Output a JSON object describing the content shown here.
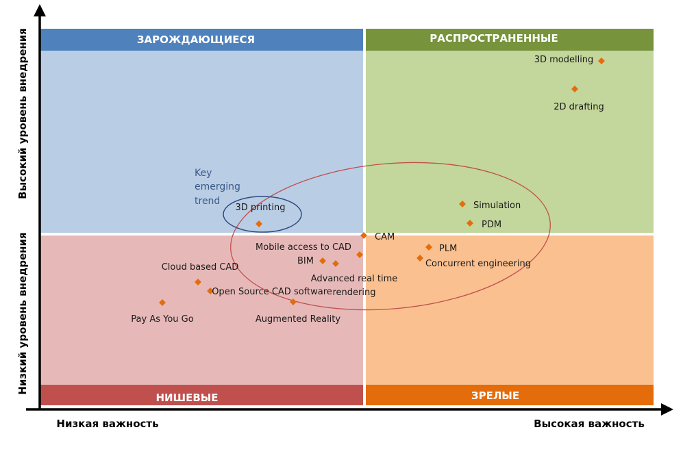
{
  "quadrants": {
    "top_left": {
      "title": "ЗАРОЖДАЮЩИЕСЯ",
      "header_color": "#4f81bd",
      "fill_color": "#b9cde5"
    },
    "top_right": {
      "title": "РАСПРОСТРАНЕННЫЕ",
      "header_color": "#77933c",
      "fill_color": "#c3d69b"
    },
    "bottom_left": {
      "title": "НИШЕВЫЕ",
      "header_color": "#c0504d",
      "fill_color": "#e6b9b8"
    },
    "bottom_right": {
      "title": "ЗРЕЛЫЕ",
      "header_color": "#e46c0a",
      "fill_color": "#fac090"
    }
  },
  "axes": {
    "y_high": "Высокий уровень внедрения",
    "y_low": "Низкий уровень внедрения",
    "x_low": "Низкая важность",
    "x_high": "Высокая важность"
  },
  "annotation": {
    "line1": "Key",
    "line2": "emerging",
    "line3": "trend"
  },
  "marker_color": "#e46c0a",
  "points": [
    {
      "label": "3D modelling"
    },
    {
      "label": "2D drafting"
    },
    {
      "label": "Simulation"
    },
    {
      "label": "PDM"
    },
    {
      "label": "3D printing"
    },
    {
      "label": "CAM"
    },
    {
      "label": "Mobile access to CAD"
    },
    {
      "label": "PLM"
    },
    {
      "label": "BIM"
    },
    {
      "label": "Concurrent engineering"
    },
    {
      "label": "Cloud based CAD"
    },
    {
      "label": "Advanced real time"
    },
    {
      "label": "rendering"
    },
    {
      "label": "Open Source CAD software"
    },
    {
      "label": "Pay As You Go"
    },
    {
      "label": "Augmented Reality"
    }
  ]
}
